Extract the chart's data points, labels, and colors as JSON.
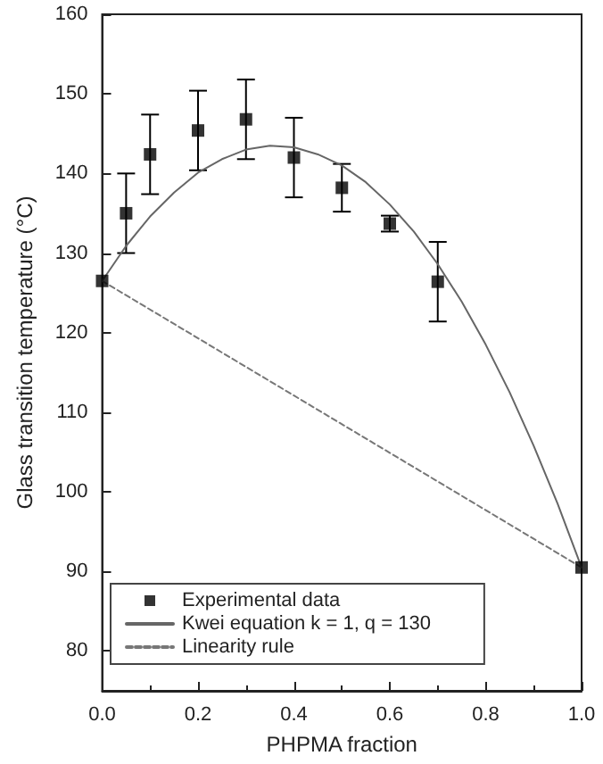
{
  "chart_data": {
    "type": "scatter",
    "xlabel": "PHPMA fraction",
    "ylabel": "Glass transition temperature (°C)",
    "xlim": [
      0,
      1
    ],
    "xticks": [
      {
        "value": 0,
        "label": "0.0"
      },
      0.2,
      0.4,
      0.6,
      0.8,
      {
        "value": 1,
        "label": "1.0"
      }
    ],
    "ylim": [
      75,
      160
    ],
    "yticks": [
      80,
      90,
      100,
      110,
      120,
      130,
      140,
      150,
      160
    ],
    "grid": false,
    "legend": "bottom left",
    "series": [
      {
        "name": "Experimental data",
        "marker": "square",
        "color": "#000000",
        "x": [
          0,
          0.05,
          0.1,
          0.2,
          0.3,
          0.4,
          0.5,
          0.6,
          0.7,
          1
        ],
        "values": [
          126.5,
          135,
          142.4,
          145.4,
          146.8,
          142,
          138.2,
          133.7,
          126.4,
          90.5
        ],
        "errors": [
          null,
          5,
          5,
          5,
          5,
          5,
          3,
          1,
          5,
          null
        ]
      },
      {
        "name": "Kwei equation k = 1, q = 130",
        "type": "line",
        "line_style": "solid",
        "marker": "none",
        "color": "#666666",
        "x": [
          0,
          0.05,
          0.1,
          0.15,
          0.2,
          0.25,
          0.3,
          0.35,
          0.4,
          0.45,
          0.5,
          0.55,
          0.6,
          0.65,
          0.7,
          0.75,
          0.8,
          0.85,
          0.9,
          0.95,
          1
        ],
        "values": [
          126.5,
          130.9,
          134.6,
          137.6,
          140.1,
          141.8,
          143,
          143.5,
          143.3,
          142.4,
          141,
          138.9,
          136.1,
          132.7,
          128.6,
          123.9,
          118.5,
          112.5,
          105.8,
          98.5,
          90.5
        ]
      },
      {
        "name": "Linearity rule",
        "type": "line",
        "line_style": "dashed",
        "marker": "none",
        "color": "#777777",
        "x": [
          0,
          1
        ],
        "values": [
          126.5,
          90.5
        ]
      }
    ]
  }
}
